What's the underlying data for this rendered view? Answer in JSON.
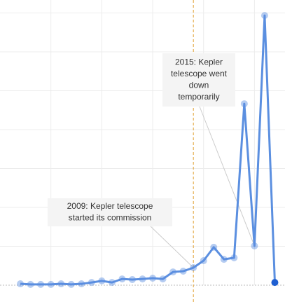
{
  "chart_data": {
    "type": "line",
    "x": [
      1992,
      1993,
      1994,
      1995,
      1996,
      1997,
      1998,
      1999,
      2000,
      2001,
      2002,
      2003,
      2004,
      2005,
      2006,
      2007,
      2008,
      2009,
      2010,
      2011,
      2012,
      2013,
      2014,
      2015,
      2016,
      2017
    ],
    "series": [
      {
        "color": "#5b8fe0",
        "highlight_color": "#1f5fd1",
        "values": [
          7,
          4,
          4,
          4,
          7,
          4,
          7,
          14,
          22,
          14,
          32,
          29,
          32,
          36,
          32,
          68,
          72,
          90,
          126,
          195,
          133,
          141,
          933,
          202,
          1387,
          14
        ]
      }
    ],
    "xlim": [
      1990,
      2018
    ],
    "xticks": [
      1995,
      2000,
      2005,
      2010,
      2015
    ],
    "ylim": [
      0,
      1400
    ],
    "yticks": [
      0,
      200,
      400,
      600,
      800,
      1000,
      1200,
      1400
    ],
    "grid": true,
    "marker_line": {
      "x": 2009,
      "color": "#e0a030"
    },
    "annotations": [
      {
        "x": 2009,
        "lines": [
          "2009: Kepler telescope",
          "started its commission"
        ]
      },
      {
        "x": 2015,
        "lines": [
          "2015: Kepler",
          "telescope went",
          "down",
          "temporarily"
        ]
      }
    ]
  }
}
